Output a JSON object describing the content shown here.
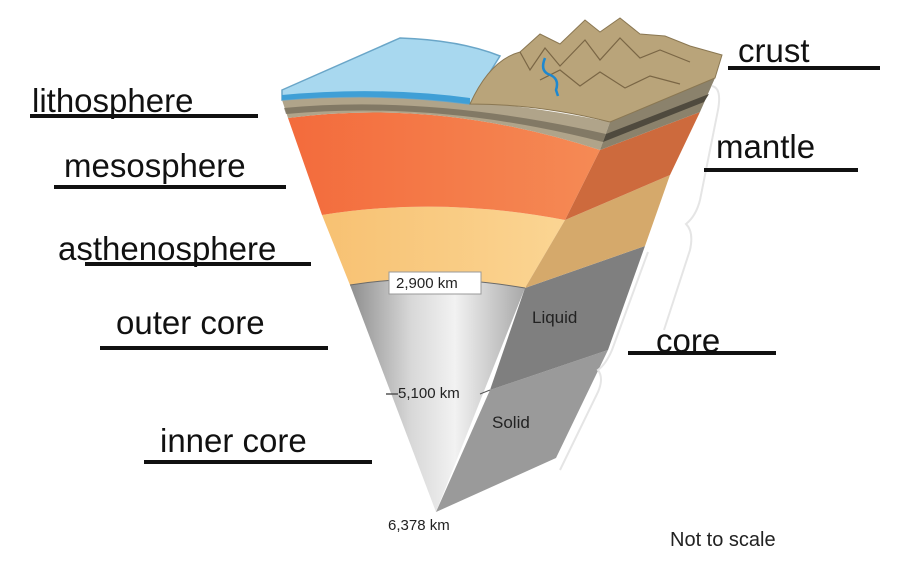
{
  "labels": {
    "lithosphere": "lithosphere",
    "mesosphere": "mesosphere",
    "asthenosphere_lead": "a",
    "asthenosphere_rest": "sthenosphere",
    "outer_core": "outer core",
    "inner_core": "inner core",
    "crust": "crust",
    "mantle": "mantle",
    "core": "core"
  },
  "depths": {
    "d2900": "2,900 km",
    "d5100": "5,100 km",
    "d6378": "6,378 km"
  },
  "zones": {
    "liquid": "Liquid",
    "solid": "Solid"
  },
  "note": "Not to scale",
  "colors": {
    "ocean": "#a8d8ef",
    "land": "#b9a47a",
    "crust_band": "#8c8167",
    "upper_mantle": "#f3834f",
    "asthenosphere": "#f9cd86",
    "outer_core": "#b9b9b9",
    "inner_core": "#e0e0e0",
    "label_line": "#111111"
  }
}
